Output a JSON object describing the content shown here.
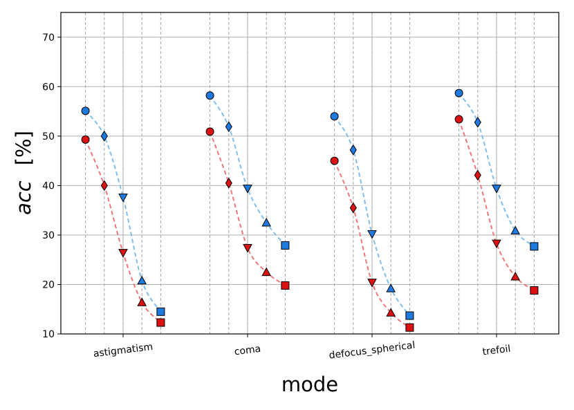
{
  "chart_data": {
    "type": "line",
    "title": "",
    "xlabel": "mode",
    "ylabel_symbol": "acc",
    "ylabel_unit": "[%]",
    "ylim": [
      10,
      75
    ],
    "yticks": [
      10,
      20,
      30,
      40,
      50,
      60,
      70
    ],
    "grid": true,
    "categories": [
      "astigmatism",
      "coma",
      "defocus_spherical",
      "trefoil"
    ],
    "levels_per_category": 5,
    "markers": [
      "circle",
      "diamond",
      "triangle-down",
      "triangle-up",
      "square"
    ],
    "series": [
      {
        "color": "#1f7ae0",
        "line_color": "#7fbfee",
        "values": [
          [
            55.1,
            50.0,
            37.6,
            20.8,
            14.5
          ],
          [
            58.2,
            51.9,
            39.4,
            32.5,
            27.9
          ],
          [
            54.0,
            47.2,
            30.2,
            19.2,
            13.7
          ],
          [
            58.7,
            52.8,
            39.4,
            30.9,
            27.7
          ]
        ]
      },
      {
        "color": "#dd1111",
        "line_color": "#ee7777",
        "values": [
          [
            49.3,
            40.0,
            26.4,
            16.4,
            12.3
          ],
          [
            50.9,
            40.5,
            27.4,
            22.5,
            19.8
          ],
          [
            45.0,
            35.5,
            20.4,
            14.3,
            11.3
          ],
          [
            53.4,
            42.1,
            28.3,
            21.6,
            18.8
          ]
        ]
      }
    ]
  }
}
